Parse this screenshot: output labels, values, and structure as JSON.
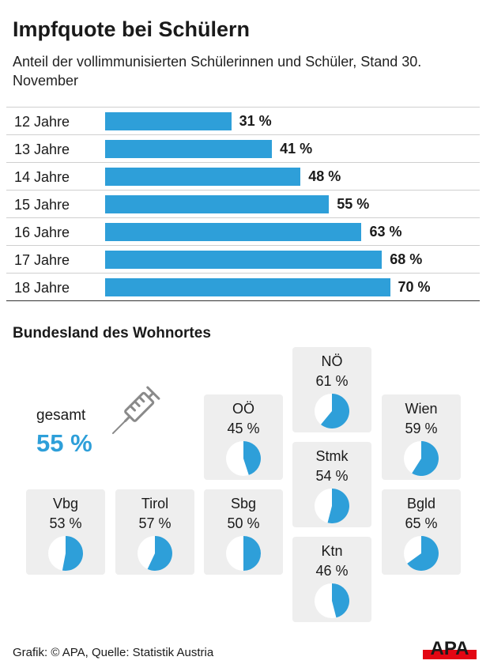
{
  "title": "Impfquote bei Schülern",
  "subtitle": "Anteil der vollimmunisierten Schülerinnen und Schüler, Stand 30. November",
  "chart_data": [
    {
      "type": "bar",
      "orientation": "horizontal",
      "categories": [
        "12 Jahre",
        "13 Jahre",
        "14 Jahre",
        "15 Jahre",
        "16 Jahre",
        "17 Jahre",
        "18 Jahre"
      ],
      "values": [
        31,
        41,
        48,
        55,
        63,
        68,
        70
      ],
      "value_labels": [
        "31 %",
        "41 %",
        "48 %",
        "55 %",
        "63 %",
        "68 %",
        "70 %"
      ],
      "color": "#2e9fd9"
    },
    {
      "type": "pie",
      "title": "Bundesland des Wohnortes",
      "overall_label": "gesamt",
      "overall_value": 55,
      "overall_text": "55 %",
      "color": "#2e9fd9",
      "regions": [
        {
          "name": "NÖ",
          "value": 61,
          "label": "61 %"
        },
        {
          "name": "OÖ",
          "value": 45,
          "label": "45 %"
        },
        {
          "name": "Wien",
          "value": 59,
          "label": "59 %"
        },
        {
          "name": "Stmk",
          "value": 54,
          "label": "54 %"
        },
        {
          "name": "Vbg",
          "value": 53,
          "label": "53 %"
        },
        {
          "name": "Tirol",
          "value": 57,
          "label": "57 %"
        },
        {
          "name": "Sbg",
          "value": 50,
          "label": "50 %"
        },
        {
          "name": "Bgld",
          "value": 65,
          "label": "65 %"
        },
        {
          "name": "Ktn",
          "value": 46,
          "label": "46 %"
        }
      ]
    }
  ],
  "footer": "Grafik: © APA, Quelle: Statistik Austria",
  "logo_text": "APA",
  "icons": {
    "syringe": "syringe-icon",
    "logo": "apa-logo-icon"
  }
}
